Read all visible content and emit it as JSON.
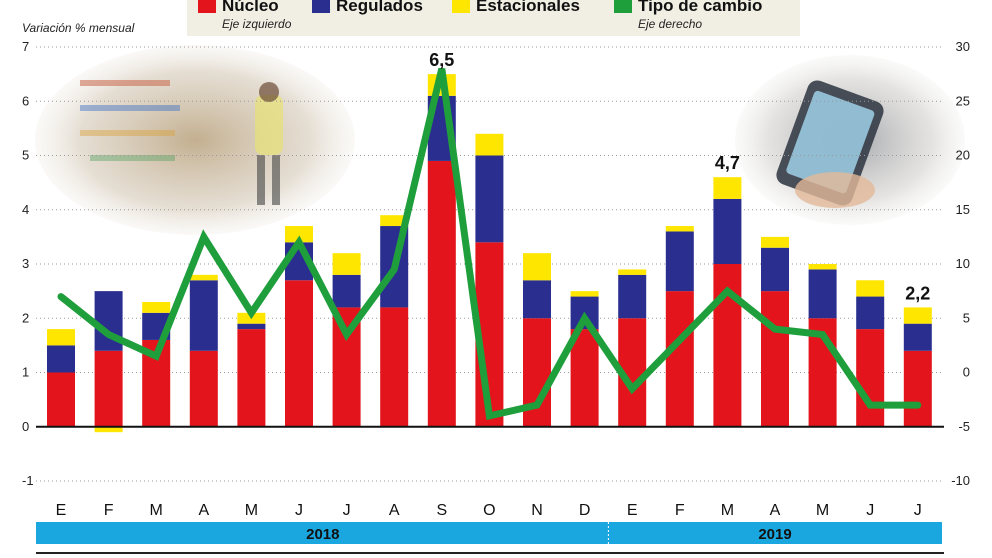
{
  "legend": {
    "items": [
      {
        "label": "Núcleo",
        "color": "#e3141b"
      },
      {
        "label": "Regulados",
        "color": "#2a2f8f"
      },
      {
        "label": "Estacionales",
        "color": "#ffe600"
      },
      {
        "label": "Tipo de cambio",
        "color": "#1f9e3c"
      }
    ],
    "left_axis_note": "Eje izquierdo",
    "right_axis_note": "Eje derecho"
  },
  "chart_data": {
    "type": "bar",
    "stacked": true,
    "ylabel": "Variación % mensual",
    "categories": [
      "E",
      "F",
      "M",
      "A",
      "M",
      "J",
      "J",
      "A",
      "S",
      "O",
      "N",
      "D",
      "E",
      "F",
      "M",
      "A",
      "M",
      "J",
      "J"
    ],
    "years": [
      {
        "label": "2018",
        "from": 0,
        "to": 11
      },
      {
        "label": "2019",
        "from": 12,
        "to": 18
      }
    ],
    "ylim": [
      -1,
      7
    ],
    "yticks": [
      -1,
      0,
      1,
      2,
      3,
      4,
      5,
      6,
      7
    ],
    "y2lim": [
      -10,
      30
    ],
    "y2ticks": [
      -10,
      -5,
      0,
      5,
      10,
      15,
      20,
      25,
      30
    ],
    "series": [
      {
        "name": "Núcleo",
        "color": "#e3141b",
        "values": [
          1.0,
          1.4,
          1.6,
          1.4,
          1.8,
          2.7,
          2.2,
          2.2,
          4.9,
          3.4,
          2.0,
          1.8,
          2.0,
          2.5,
          3.0,
          2.5,
          2.0,
          1.8,
          1.4
        ]
      },
      {
        "name": "Regulados",
        "color": "#2a2f8f",
        "values": [
          0.5,
          1.1,
          0.5,
          1.3,
          0.1,
          0.7,
          0.6,
          1.5,
          1.2,
          1.6,
          0.7,
          0.6,
          0.8,
          1.1,
          1.2,
          0.8,
          0.9,
          0.6,
          0.5
        ]
      },
      {
        "name": "Estacionales",
        "color": "#ffe600",
        "values": [
          0.3,
          -0.1,
          0.2,
          0.1,
          0.2,
          0.3,
          0.4,
          0.2,
          0.4,
          0.4,
          0.5,
          0.1,
          0.1,
          0.1,
          0.4,
          0.2,
          0.1,
          0.3,
          0.3
        ]
      },
      {
        "name": "Tipo de cambio",
        "color": "#1f9e3c",
        "axis": "right",
        "type": "line",
        "values": [
          7,
          3.5,
          1.5,
          12.5,
          5.5,
          12,
          3.5,
          9.5,
          28,
          -4,
          -3,
          5,
          -1.5,
          3,
          7.5,
          4,
          3.5,
          -3,
          -3
        ]
      }
    ],
    "annotations": [
      {
        "index": 8,
        "label": "6,5"
      },
      {
        "index": 14,
        "label": "4,7"
      },
      {
        "index": 18,
        "label": "2,2"
      }
    ]
  }
}
